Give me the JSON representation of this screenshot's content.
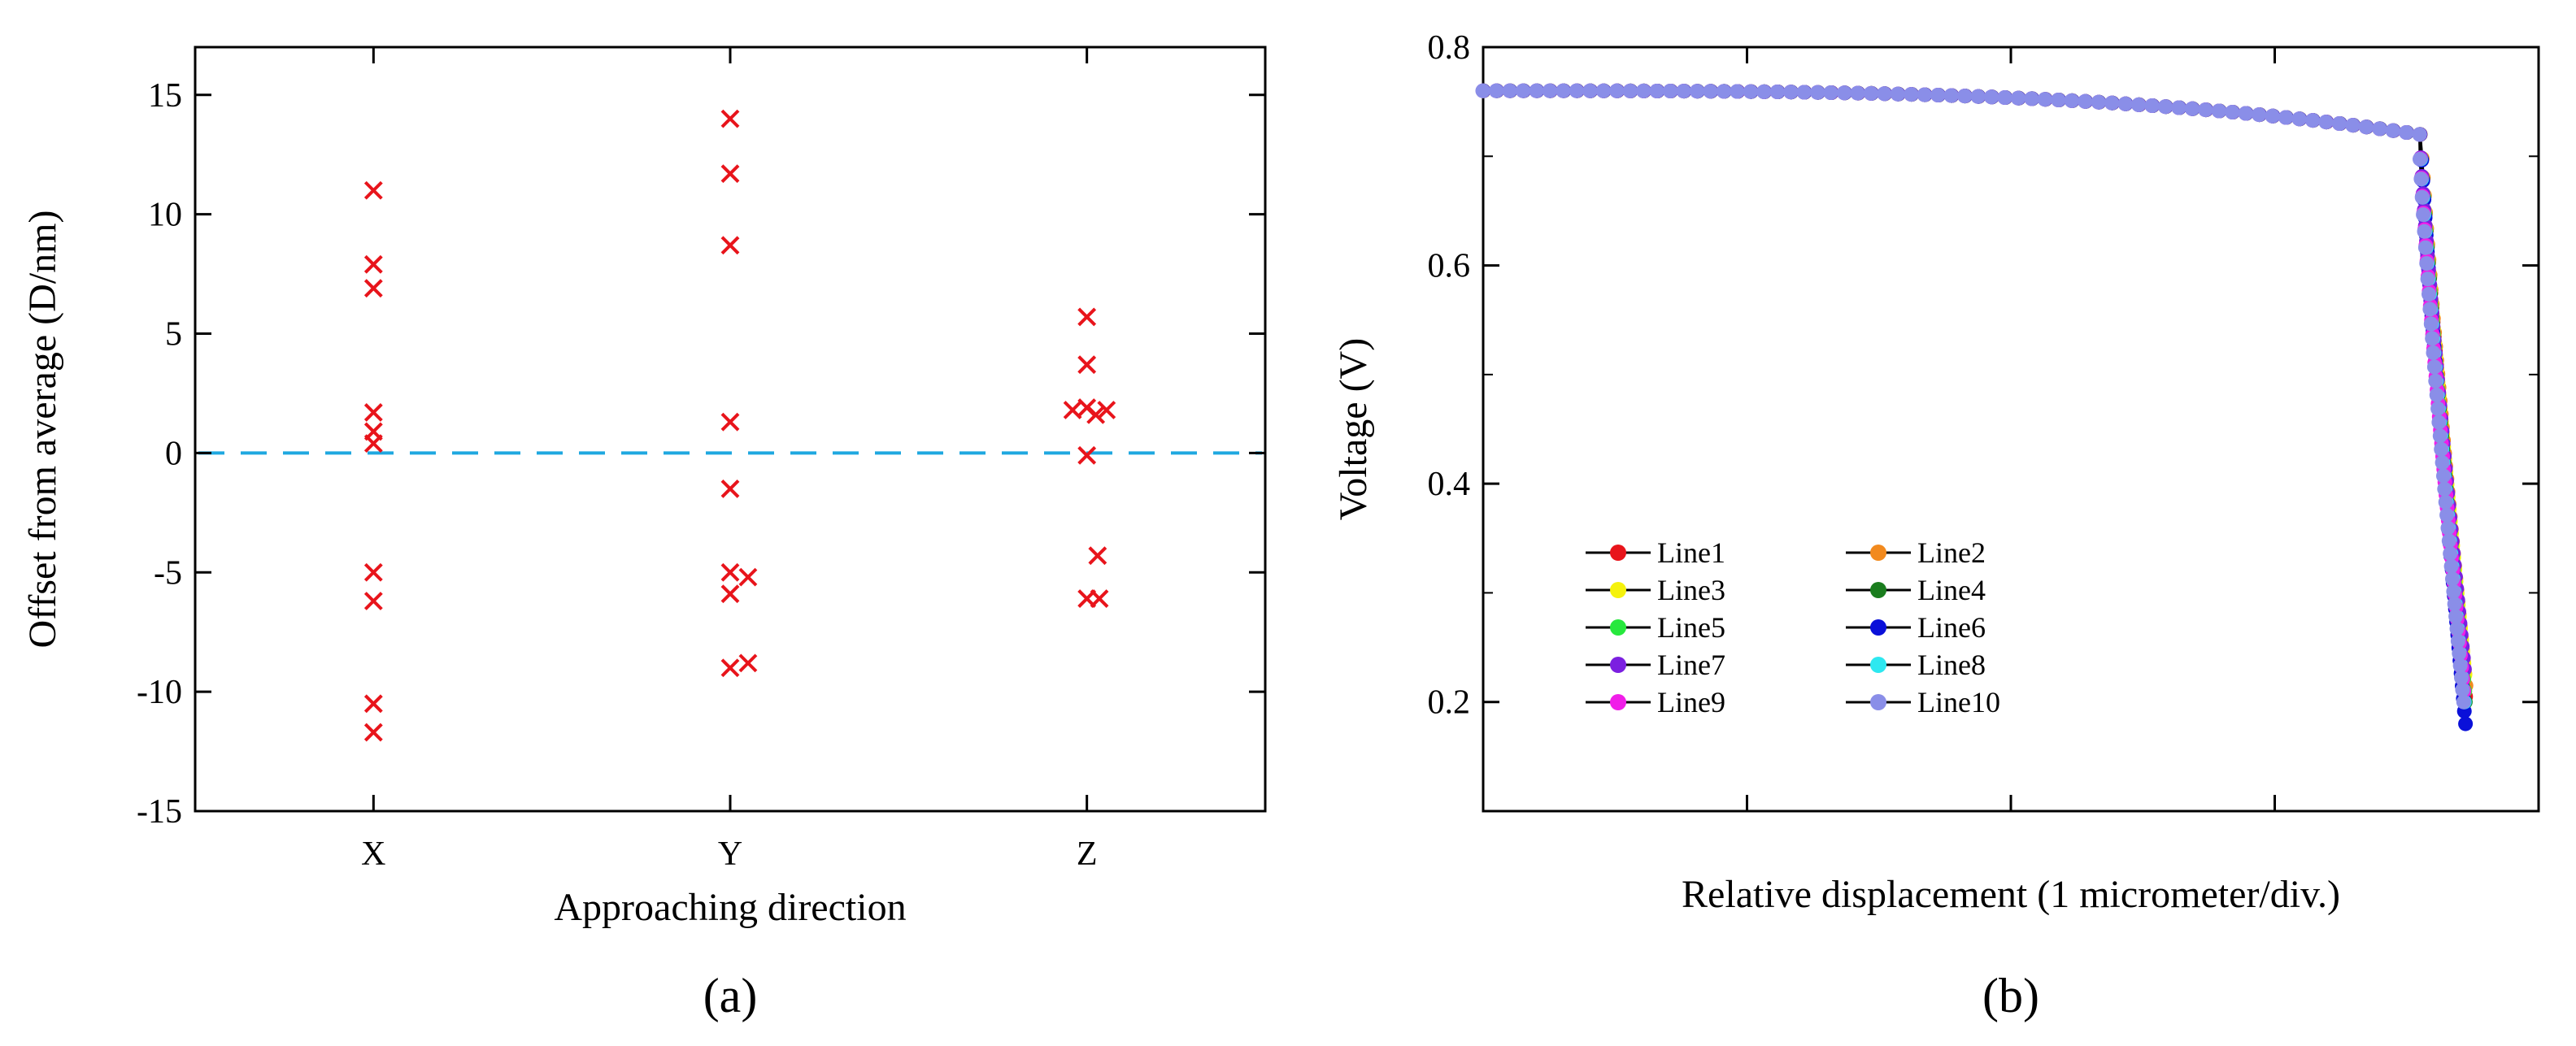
{
  "chart_data": [
    {
      "type": "scatter",
      "panel_label": "(a)",
      "xlabel": "Approaching direction",
      "ylabel": "Offset from average (D/nm)",
      "categories": [
        "X",
        "Y",
        "Z"
      ],
      "ylim": [
        -15,
        17
      ],
      "yticks": [
        15,
        10,
        5,
        0,
        -5,
        -10,
        -15
      ],
      "ytick_labels": [
        "15",
        "10",
        "5",
        "0",
        "-5",
        "-10",
        "-15"
      ],
      "marker": "x",
      "marker_color": "#e8141b",
      "reference_line": {
        "y": 0,
        "style": "dashed",
        "color": "#1fa8e0"
      },
      "series": [
        {
          "name": "X",
          "points": [
            {
              "dx": 0,
              "y": 11.0
            },
            {
              "dx": 0,
              "y": 7.9
            },
            {
              "dx": 0,
              "y": 6.9
            },
            {
              "dx": 0,
              "y": 1.7
            },
            {
              "dx": 0,
              "y": 0.9
            },
            {
              "dx": 0,
              "y": 0.4
            },
            {
              "dx": 0,
              "y": -5.0
            },
            {
              "dx": 0,
              "y": -6.2
            },
            {
              "dx": 0,
              "y": -10.5
            },
            {
              "dx": 0,
              "y": -11.7
            }
          ]
        },
        {
          "name": "Y",
          "points": [
            {
              "dx": 0,
              "y": 14.0
            },
            {
              "dx": 0,
              "y": 11.7
            },
            {
              "dx": 0,
              "y": 8.7
            },
            {
              "dx": 0,
              "y": 1.3
            },
            {
              "dx": 0,
              "y": -1.5
            },
            {
              "dx": 0,
              "y": -5.0
            },
            {
              "dx": 0.05,
              "y": -5.2
            },
            {
              "dx": 0,
              "y": -5.9
            },
            {
              "dx": 0,
              "y": -9.0
            },
            {
              "dx": 0.05,
              "y": -8.8
            }
          ]
        },
        {
          "name": "Z",
          "points": [
            {
              "dx": 0,
              "y": 5.7
            },
            {
              "dx": 0,
              "y": 3.7
            },
            {
              "dx": -0.04,
              "y": 1.8
            },
            {
              "dx": 0,
              "y": 1.9
            },
            {
              "dx": 0.025,
              "y": 1.6
            },
            {
              "dx": 0.055,
              "y": 1.8
            },
            {
              "dx": 0,
              "y": -0.1
            },
            {
              "dx": 0.03,
              "y": -4.3
            },
            {
              "dx": 0,
              "y": -6.1
            },
            {
              "dx": 0.035,
              "y": -6.1
            }
          ]
        }
      ]
    },
    {
      "type": "line",
      "panel_label": "(b)",
      "xlabel": "Relative displacement (1 micrometer/div.)",
      "ylabel": "Voltage (V)",
      "xlim": [
        0,
        4
      ],
      "xtick_count": 4,
      "ylim": [
        0.1,
        0.8
      ],
      "yticks": [
        0.8,
        0.6,
        0.4,
        0.2
      ],
      "ytick_labels": [
        "0.8",
        "0.6",
        "0.4",
        "0.2"
      ],
      "curve_shape": {
        "plateau_start": [
          0.0,
          0.76
        ],
        "plateau_mid": [
          2.0,
          0.752
        ],
        "knee": [
          3.55,
          0.72
        ],
        "tail_end_y": 0.2,
        "tail_end_x": 3.72
      },
      "legend": {
        "position": "bottom-left",
        "columns": 2
      },
      "series": [
        {
          "name": "Line1",
          "color": "#e8141b",
          "offset": 0.012,
          "tail_end_y": 0.205
        },
        {
          "name": "Line2",
          "color": "#f28a1e",
          "offset": 0.016,
          "tail_end_y": 0.215
        },
        {
          "name": "Line3",
          "color": "#f5f20c",
          "offset": 0.004,
          "tail_end_y": 0.225
        },
        {
          "name": "Line4",
          "color": "#1a7d1e",
          "offset": 0.008,
          "tail_end_y": 0.2
        },
        {
          "name": "Line5",
          "color": "#27e83d",
          "offset": 0.002,
          "tail_end_y": 0.21
        },
        {
          "name": "Line6",
          "color": "#0a10d9",
          "offset": 0.01,
          "tail_end_y": 0.18
        },
        {
          "name": "Line7",
          "color": "#7b1fe0",
          "offset": -0.002,
          "tail_end_y": 0.23
        },
        {
          "name": "Line8",
          "color": "#2de8f0",
          "offset": -0.004,
          "tail_end_y": 0.2
        },
        {
          "name": "Line9",
          "color": "#f01ee8",
          "offset": -0.01,
          "tail_end_y": 0.21
        },
        {
          "name": "Line10",
          "color": "#8a8ee8",
          "offset": -0.014,
          "tail_end_y": 0.2
        }
      ]
    }
  ]
}
